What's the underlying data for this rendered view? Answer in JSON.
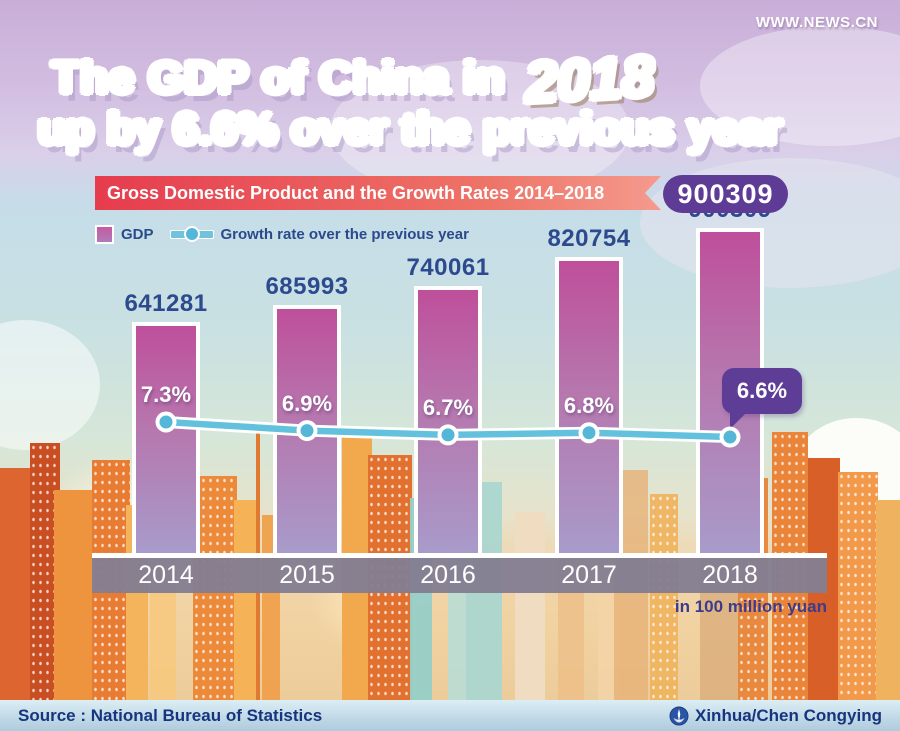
{
  "brand": "WWW.NEWS.CN",
  "title": {
    "line1": "The GDP of China in",
    "year": "2018",
    "line2": "up by 6.6% over the previous year"
  },
  "banner": {
    "text": "Gross Domestic Product and the Growth Rates 2014–2018",
    "highlight_value": "900309"
  },
  "legend": {
    "gdp_label": "GDP",
    "growth_label": "Growth rate over the previous year"
  },
  "chart_data": {
    "type": "bar+line",
    "categories": [
      "2014",
      "2015",
      "2016",
      "2017",
      "2018"
    ],
    "series": [
      {
        "name": "GDP",
        "type": "bar",
        "values": [
          641281,
          685993,
          740061,
          820754,
          900309
        ],
        "color": "#bf559d"
      },
      {
        "name": "Growth rate over the previous year",
        "type": "line",
        "values": [
          7.3,
          6.9,
          6.7,
          6.8,
          6.6
        ],
        "unit": "%",
        "color": "#63c1de"
      }
    ],
    "title": "Gross Domestic Product and the Growth Rates 2014–2018",
    "unit_note": "in 100 million yuan",
    "highlighted_value": 900309,
    "value_labels": "above bars",
    "legend_position": "top-left"
  },
  "footer": {
    "source": "Source : National Bureau of Statistics",
    "credit": "Xinhua/Chen Congying"
  },
  "colors": {
    "bar_top": "#bf4f9b",
    "bar_bottom": "#a89bca",
    "line": "#63c1de",
    "marker": "#54b7d8",
    "ribbon_red": "#e63c4e",
    "badge_purple": "#5e3c96",
    "label_blue": "#2d4a8f",
    "axis_band": "#837e92"
  }
}
